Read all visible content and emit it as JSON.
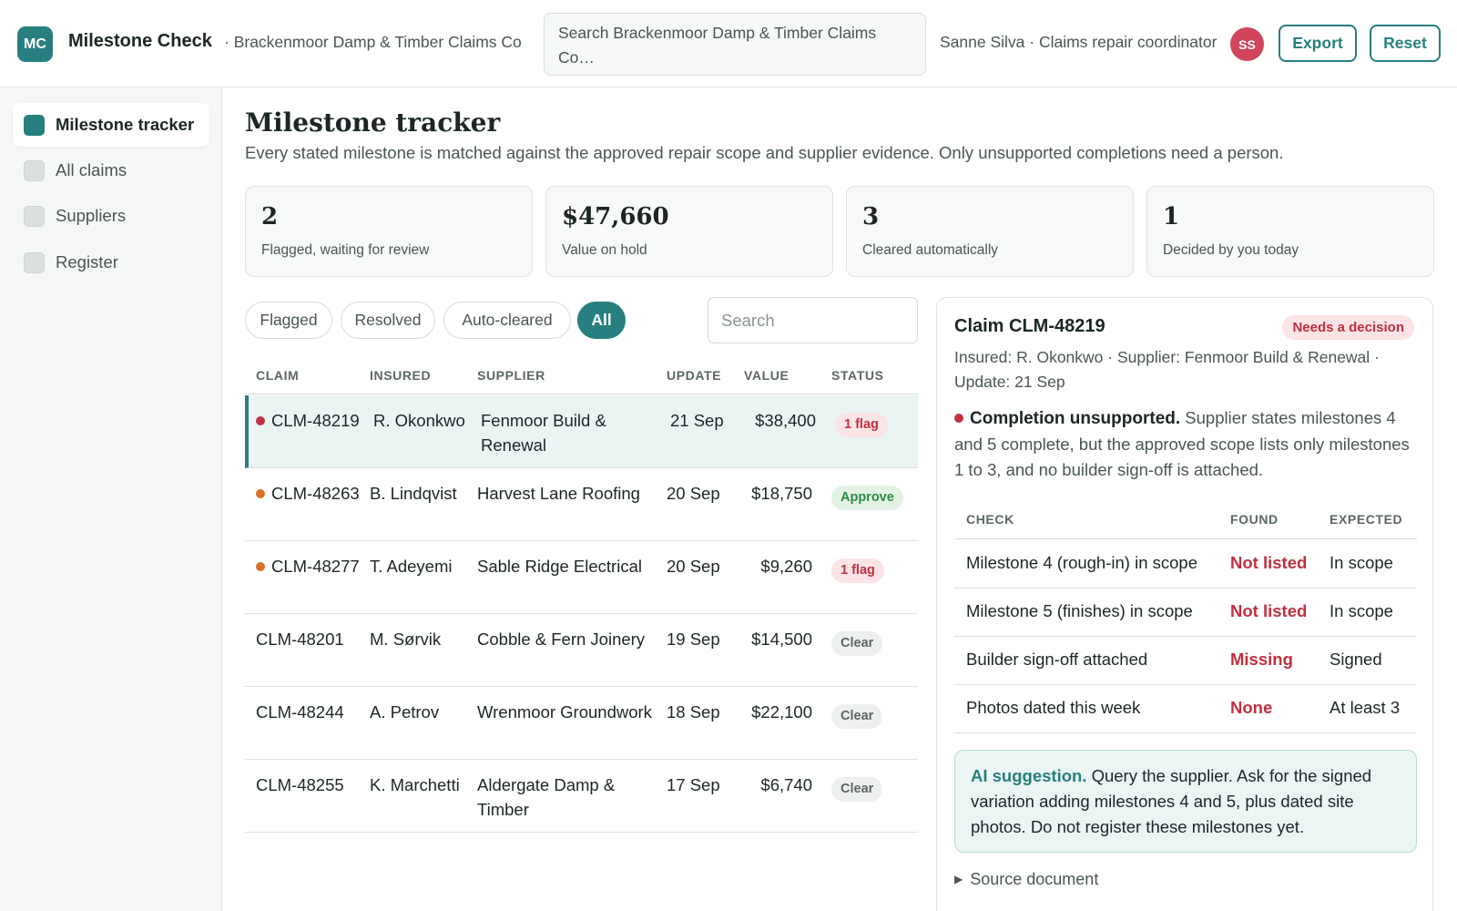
{
  "header": {
    "logo_initials": "MC",
    "app_name": "Milestone Check",
    "org_name": "· Brackenmoor Damp & Timber Claims Co",
    "search_value": "Search Brackenmoor Damp & Timber Claims Co…",
    "user_label": "Sanne Silva · Claims repair coordinator",
    "user_initials": "SS",
    "export_label": "Export",
    "reset_label": "Reset"
  },
  "sidebar": {
    "items": [
      {
        "label": "Milestone tracker",
        "active": true
      },
      {
        "label": "All claims"
      },
      {
        "label": "Suppliers"
      },
      {
        "label": "Register"
      }
    ]
  },
  "main": {
    "title": "Milestone tracker",
    "subtitle": "Every stated milestone is matched against the approved repair scope and supplier evidence. Only unsupported completions need a person.",
    "stats": [
      {
        "value": "2",
        "label": "Flagged, waiting for review"
      },
      {
        "value": "$47,660",
        "label": "Value on hold"
      },
      {
        "value": "3",
        "label": "Cleared automatically"
      },
      {
        "value": "1",
        "label": "Decided by you today"
      }
    ],
    "filters": [
      "Flagged",
      "Resolved",
      "Auto-cleared",
      "All"
    ],
    "active_filter": "All",
    "search_placeholder": "Search"
  },
  "table": {
    "columns": [
      "CLAIM",
      "INSURED",
      "SUPPLIER",
      "UPDATE",
      "VALUE",
      "STATUS"
    ],
    "rows": [
      {
        "claim": "CLM-48219",
        "insured": "R. Okonkwo",
        "supplier": "Fenmoor Build & Renewal",
        "update": "21 Sep",
        "value": "$38,400",
        "status": "1 flag",
        "dot": "#c1303f"
      },
      {
        "claim": "CLM-48263",
        "insured": "B. Lindqvist",
        "supplier": "Harvest Lane Roofing",
        "update": "20 Sep",
        "value": "$18,750",
        "status": "Approve",
        "dot": "#d9702a"
      },
      {
        "claim": "CLM-48277",
        "insured": "T. Adeyemi",
        "supplier": "Sable Ridge Electrical",
        "update": "20 Sep",
        "value": "$9,260",
        "status": "1 flag",
        "dot": "#d9702a"
      },
      {
        "claim": "CLM-48201",
        "insured": "M. Sørvik",
        "supplier": "Cobble & Fern Joinery",
        "update": "19 Sep",
        "value": "$14,500",
        "status": "Clear"
      },
      {
        "claim": "CLM-48244",
        "insured": "A. Petrov",
        "supplier": "Wrenmoor Groundwork",
        "update": "18 Sep",
        "value": "$22,100",
        "status": "Clear"
      },
      {
        "claim": "CLM-48255",
        "insured": "K. Marchetti",
        "supplier": "Aldergate Damp & Timber",
        "update": "17 Sep",
        "value": "$6,740",
        "status": "Clear"
      }
    ]
  },
  "detail": {
    "title": "Claim CLM-48219",
    "badge": "Needs a decision",
    "meta": "Insured: R. Okonkwo · Supplier: Fenmoor Build & Renewal · Update: 21 Sep",
    "finding_title": "Completion unsupported.",
    "finding_text": "Supplier states milestones 4 and 5 complete, but the approved scope lists only milestones 1 to 3, and no builder sign-off is attached.",
    "checks_columns": [
      "CHECK",
      "FOUND",
      "EXPECTED"
    ],
    "checks": [
      {
        "check": "Milestone 4 (rough-in) in scope",
        "found": "Not listed",
        "expected": "In scope"
      },
      {
        "check": "Milestone 5 (finishes) in scope",
        "found": "Not listed",
        "expected": "In scope"
      },
      {
        "check": "Builder sign-off attached",
        "found": "Missing",
        "expected": "Signed"
      },
      {
        "check": "Photos dated this week",
        "found": "None",
        "expected": "At least 3"
      }
    ],
    "ai_label": "AI suggestion.",
    "ai_text": "Query the supplier. Ask for the signed variation adding milestones 4 and 5, plus dated site photos. Do not register these milestones yet.",
    "source_label": "Source document"
  },
  "colors": {
    "accent": "#27807f",
    "flag": "#c1303f",
    "approve": "#2b8a45",
    "warn_dot": "#d9702a"
  }
}
